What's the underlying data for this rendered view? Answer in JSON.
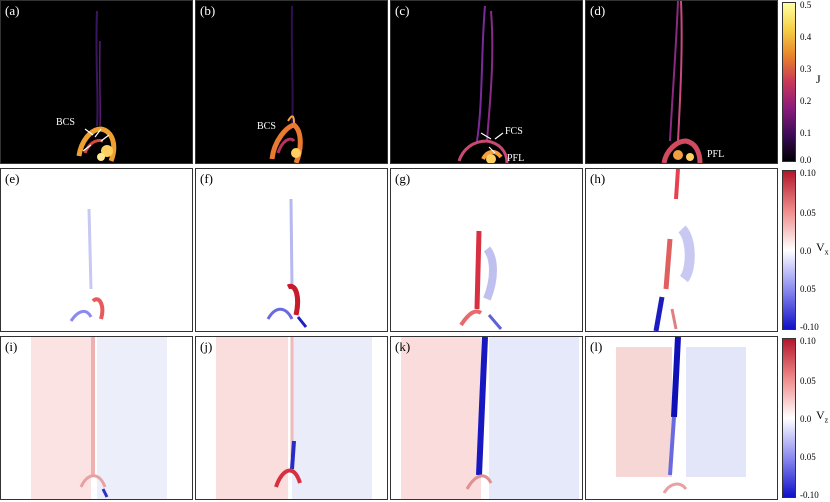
{
  "rows": [
    {
      "quantity": "J",
      "colorbar": {
        "ticks": [
          "0.5",
          "0.4",
          "0.3",
          "0.2",
          "0.1",
          "0.0"
        ],
        "title": "J",
        "colors": [
          "#ffffa0",
          "#f5d046",
          "#e8842a",
          "#c8385a",
          "#8a1c7a",
          "#3c0c58",
          "#000004"
        ]
      },
      "panels": [
        {
          "label": "(a)",
          "annotations": [
            "BCS"
          ]
        },
        {
          "label": "(b)",
          "annotations": [
            "BCS"
          ]
        },
        {
          "label": "(c)",
          "annotations": [
            "FCS",
            "PFL"
          ]
        },
        {
          "label": "(d)",
          "annotations": [
            "PFL"
          ]
        }
      ]
    },
    {
      "quantity": "Vx",
      "colorbar": {
        "ticks": [
          "0.10",
          "0.05",
          "0.0",
          "0.05",
          "-0.10"
        ],
        "title_main": "V",
        "title_sub": "x",
        "colors": [
          "#b2182b",
          "#ef8a8a",
          "#ffffff",
          "#8a8af0",
          "#1010c8"
        ]
      },
      "panels": [
        {
          "label": "(e)"
        },
        {
          "label": "(f)"
        },
        {
          "label": "(g)"
        },
        {
          "label": "(h)"
        }
      ]
    },
    {
      "quantity": "Vz",
      "colorbar": {
        "ticks": [
          "0.10",
          "0.05",
          "0.0",
          "0.05",
          "-0.10"
        ],
        "title_main": "V",
        "title_sub": "z",
        "colors": [
          "#b2182b",
          "#ef8a8a",
          "#ffffff",
          "#8a8af0",
          "#1010c8"
        ]
      },
      "panels": [
        {
          "label": "(i)"
        },
        {
          "label": "(j)"
        },
        {
          "label": "(k)"
        },
        {
          "label": "(l)"
        }
      ]
    }
  ]
}
